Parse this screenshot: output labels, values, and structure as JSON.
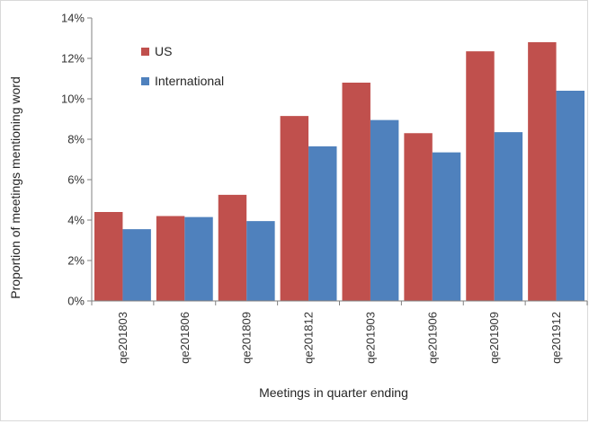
{
  "chart_data": {
    "type": "bar",
    "title": "",
    "xlabel": "Meetings in quarter ending",
    "ylabel": "Proportion of meetings mentioning word",
    "categories": [
      "qe201803",
      "qe201806",
      "qe201809",
      "qe201812",
      "qe201903",
      "qe201906",
      "qe201909",
      "qe201912"
    ],
    "series": [
      {
        "name": "US",
        "color": "#c0504d",
        "values": [
          4.4,
          4.2,
          5.25,
          9.15,
          10.8,
          8.3,
          12.35,
          12.8
        ]
      },
      {
        "name": "International",
        "color": "#4f81bd",
        "values": [
          3.55,
          4.15,
          3.95,
          7.65,
          8.95,
          7.35,
          8.35,
          10.4
        ]
      }
    ],
    "ylim": [
      0,
      14
    ],
    "yticks": [
      0,
      2,
      4,
      6,
      8,
      10,
      12,
      14
    ],
    "ytick_labels": [
      "0%",
      "2%",
      "4%",
      "6%",
      "8%",
      "10%",
      "12%",
      "14%"
    ],
    "grid": false,
    "legend": "top-left"
  }
}
